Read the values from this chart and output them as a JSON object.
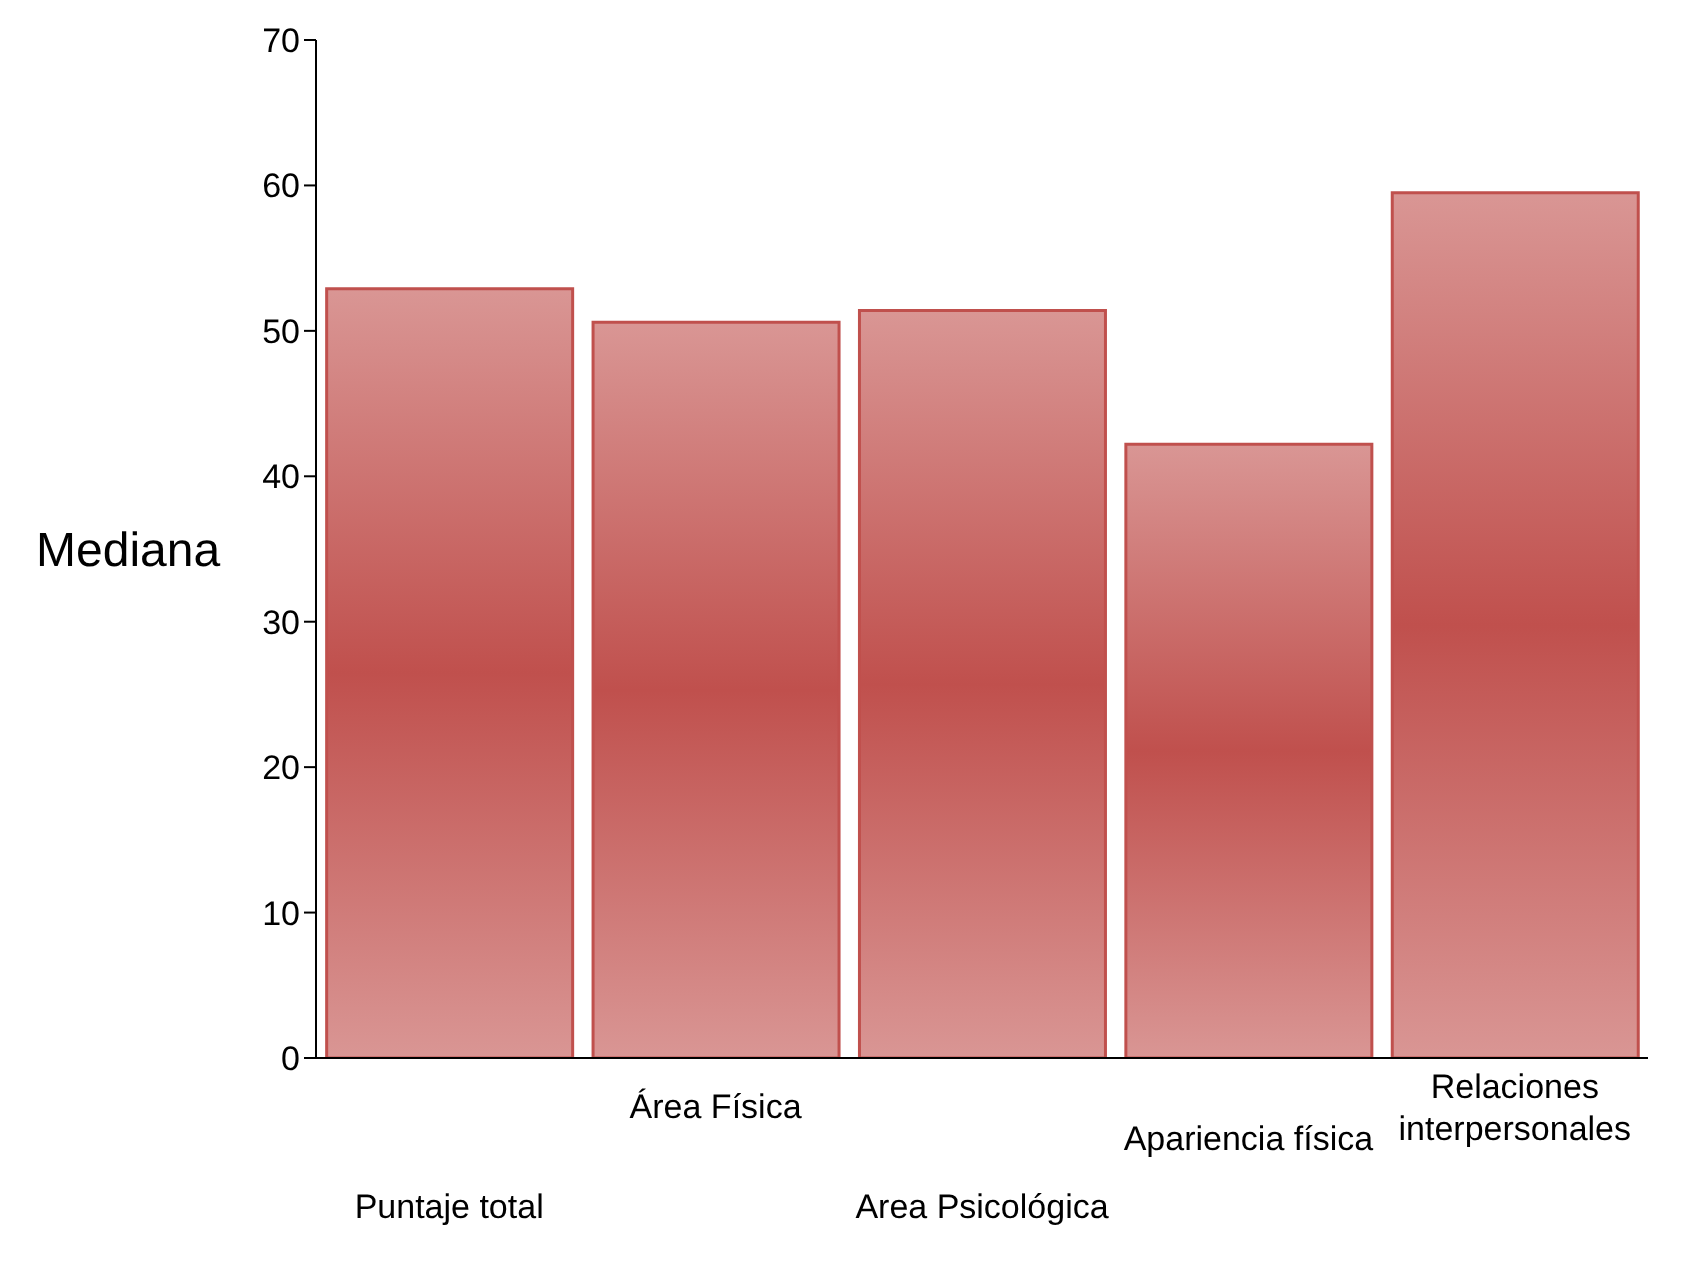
{
  "chart_data": {
    "type": "bar",
    "ylabel": "Mediana",
    "categories": [
      "Puntaje total",
      "Área Física",
      "Area Psicológica",
      "Apariencia física",
      "Relaciones interpersonales"
    ],
    "values": [
      52.9,
      50.6,
      51.4,
      42.2,
      59.5
    ],
    "color": "#c0504d",
    "ylim": [
      0,
      70
    ],
    "yticks": [
      0,
      10,
      20,
      30,
      40,
      50,
      60,
      70
    ],
    "grid": false
  }
}
